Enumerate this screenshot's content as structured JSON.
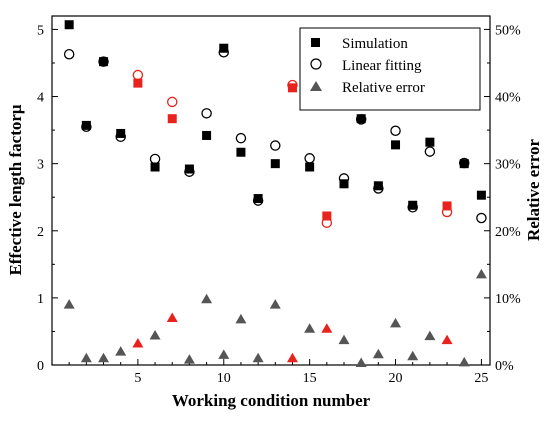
{
  "chart_data": {
    "type": "scatter",
    "xlabel": "Working condition number",
    "ylabel": "Effective length factorμ",
    "y2label": "Relative error",
    "xlim": [
      0,
      25.5
    ],
    "ylim": [
      0,
      5.2
    ],
    "y2lim": [
      0,
      52
    ],
    "xticks": [
      "5",
      "10",
      "15",
      "20",
      "25"
    ],
    "yticks": [
      "0",
      "1",
      "2",
      "3",
      "4",
      "5"
    ],
    "y2ticks": [
      "0%",
      "10%",
      "20%",
      "30%",
      "40%",
      "50%"
    ],
    "legend": {
      "position": "top-right",
      "entries": [
        "Simulation",
        "Linear fitting",
        "Relative error"
      ]
    },
    "highlight_color": "#e8221c",
    "base_color": "#000000",
    "error_color": "#555555",
    "highlighted_conditions": [
      5,
      7,
      14,
      16,
      23
    ],
    "x": [
      1,
      2,
      3,
      4,
      5,
      6,
      7,
      8,
      9,
      10,
      11,
      12,
      13,
      14,
      15,
      16,
      17,
      18,
      19,
      20,
      21,
      22,
      23,
      24,
      25
    ],
    "series": [
      {
        "name": "Simulation",
        "axis": "left",
        "marker": "square",
        "values": [
          5.07,
          3.57,
          4.52,
          3.45,
          4.2,
          2.95,
          3.67,
          2.92,
          3.42,
          4.72,
          3.17,
          2.48,
          3.0,
          4.13,
          2.95,
          2.22,
          2.7,
          3.67,
          2.67,
          3.28,
          2.38,
          3.32,
          2.37,
          3.0,
          2.53
        ]
      },
      {
        "name": "Linear fitting",
        "axis": "left",
        "marker": "open-circle",
        "values": [
          4.63,
          3.55,
          4.52,
          3.4,
          4.32,
          3.07,
          3.92,
          2.88,
          3.75,
          4.66,
          3.38,
          2.45,
          3.27,
          4.17,
          3.08,
          2.12,
          2.78,
          3.66,
          2.63,
          3.49,
          2.35,
          3.18,
          2.28,
          3.01,
          2.19
        ]
      },
      {
        "name": "Relative error",
        "axis": "right",
        "marker": "triangle",
        "values": [
          9.0,
          1.0,
          1.0,
          2.0,
          3.2,
          4.4,
          7.0,
          0.8,
          9.8,
          1.5,
          6.8,
          1.0,
          9.0,
          1.0,
          5.4,
          5.4,
          3.7,
          0.3,
          1.6,
          6.2,
          1.3,
          4.3,
          3.7,
          0.4,
          13.5
        ]
      }
    ]
  }
}
